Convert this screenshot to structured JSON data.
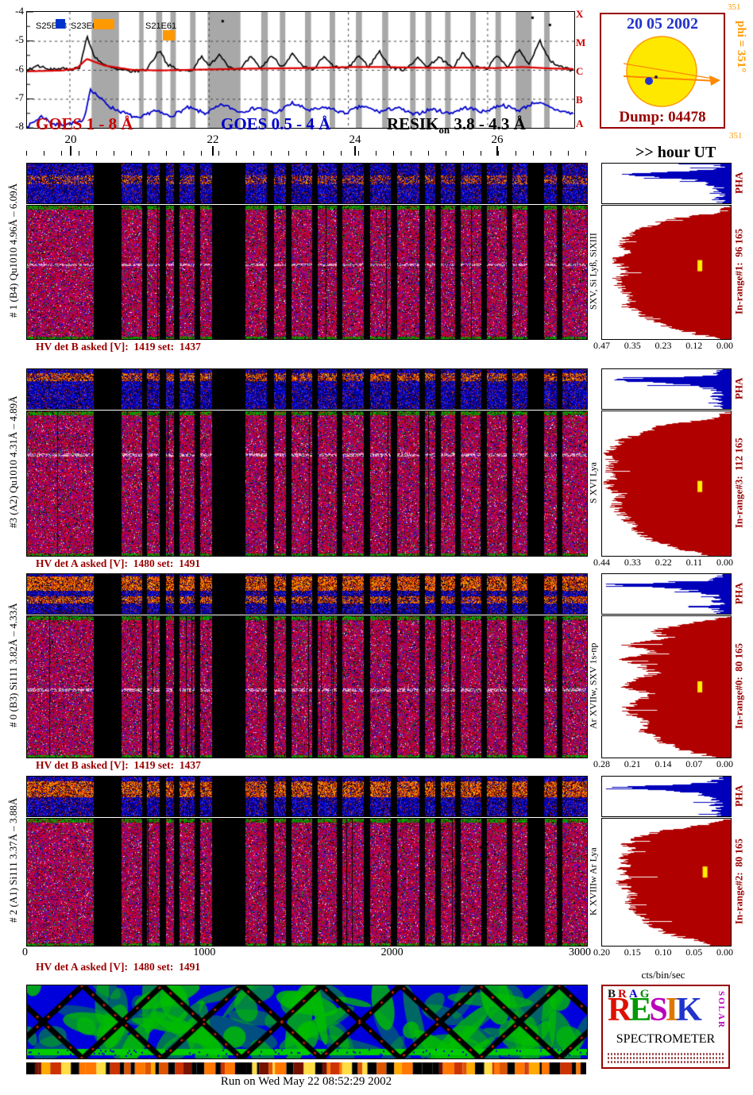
{
  "header": {
    "flares": [
      {
        "label": "S25E48",
        "marker_color": "#0033cc"
      },
      {
        "label": "S23E64",
        "marker_color": "#ff9900"
      },
      {
        "label": "S21E61",
        "marker_color": "#ff9900"
      }
    ],
    "yaxis": {
      "ticks": [
        "-4",
        "-5",
        "-6",
        "-7",
        "-8"
      ]
    },
    "goes_classes": [
      "X",
      "M",
      "C",
      "B",
      "A"
    ],
    "legend": {
      "goes_long": "GOES 1 - 8 Å",
      "goes_short": "GOES 0.5 - 4 Å",
      "resik_name": "RESIK",
      "resik_sub": "on",
      "resik_range": " 3.8 - 4.3 Å"
    }
  },
  "sun_panel": {
    "date": "20 05 2002",
    "dump": "Dump: 04478"
  },
  "side_labels": {
    "corner_value": "351",
    "phi": "phi = 351°",
    "lower_value": "351"
  },
  "time_axis": {
    "title": ">> hour UT",
    "ticks": [
      "20",
      "22",
      "24",
      "26"
    ]
  },
  "channels": [
    {
      "left_label": "# 1 (B4) Qu1010 4.96Å – 6.09Å",
      "hv_label": "HV det B asked [V]:  1419 set:  1437",
      "pha_label": "PHA",
      "line_label": "SXV, Si Lyß, SiXIII",
      "inrange_label": "In-range#1:  96 165",
      "hist_axis": [
        "0.47",
        "0.35",
        "0.23",
        "0.12",
        "0.00"
      ]
    },
    {
      "left_label": "#3 (A2) Qu1010 4.31Å – 4.89Å",
      "hv_label": "HV det A asked [V]:  1480 set:  1491",
      "pha_label": "PHA",
      "line_label": "S XVI Lya",
      "inrange_label": "In-range#3:  112 165",
      "hist_axis": [
        "0.44",
        "0.33",
        "0.22",
        "0.11",
        "0.00"
      ]
    },
    {
      "left_label": "# 0 (B3) Si111 3.82Å – 4.33Å",
      "hv_label": "HV det B asked [V]:  1419 set:  1437",
      "pha_label": "PHA",
      "line_label": "Ar XVIIw, SXV 1s-np",
      "inrange_label": "In-range#0:  80 165",
      "hist_axis": [
        "0.28",
        "0.21",
        "0.14",
        "0.07",
        "0.00"
      ]
    },
    {
      "left_label": "# 2 (A1) Si111 3.37Å – 3.88Å",
      "hv_label": "HV det A asked [V]:  1480 set:  1491",
      "pha_label": "PHA",
      "line_label": "K XVIIIw Ar Lya",
      "inrange_label": "In-range#2:  80 165",
      "hist_axis": [
        "0.20",
        "0.15",
        "0.10",
        "0.05",
        "0.00"
      ]
    }
  ],
  "bottom_axis": {
    "ticks": [
      "0",
      "1000",
      "2000",
      "3000"
    ],
    "units_label": "cts/bin/sec"
  },
  "logo": {
    "top_letters": [
      {
        "ch": "B",
        "color": "#111111"
      },
      {
        "ch": "R",
        "color": "#cc0000"
      },
      {
        "ch": "A",
        "color": "#0000cc"
      },
      {
        "ch": "G",
        "color": "#008800"
      }
    ],
    "big_letters": [
      {
        "ch": "R",
        "color": "#dd1100"
      },
      {
        "ch": "E",
        "color": "#009900"
      },
      {
        "ch": "S",
        "color": "#bb00bb"
      },
      {
        "ch": "I",
        "color": "#dd7700"
      },
      {
        "ch": "K",
        "color": "#2233cc"
      }
    ],
    "side_word": "SOLAR",
    "name": "SPECTROMETER"
  },
  "footer": {
    "run_label": "Run on Wed May 22 08:52:29 2002"
  },
  "chart_data": [
    {
      "name": "goes_xray_lightcurve",
      "type": "line",
      "x_unit": "hour UT",
      "x_range": [
        19.39,
        27.25
      ],
      "x_ticks": [
        20,
        22,
        24,
        26
      ],
      "ylim": [
        -8,
        -4
      ],
      "y_ticks": [
        -4,
        -5,
        -6,
        -7,
        -8
      ],
      "legend_position": "bottom",
      "grid": "dashed",
      "series": [
        {
          "name": "GOES 1 - 8 Å",
          "color": "#000000",
          "x": [
            19.4,
            19.55,
            19.7,
            19.85,
            20.0,
            20.15,
            20.25,
            20.35,
            20.5,
            20.7,
            20.9,
            21.1,
            21.3,
            21.4,
            21.55,
            21.75,
            21.9,
            22.0,
            22.15,
            22.3,
            22.45,
            22.6,
            22.75,
            22.9,
            23.05,
            23.2,
            23.35,
            23.5,
            23.65,
            23.8,
            24.0,
            24.15,
            24.3,
            24.45,
            24.6,
            24.8,
            25.0,
            25.15,
            25.3,
            25.5,
            25.65,
            25.8,
            26.0,
            26.15,
            26.3,
            26.45,
            26.6,
            26.75,
            26.9,
            27.05,
            27.2,
            27.3
          ],
          "y": [
            -6.0,
            -5.85,
            -6.0,
            -5.95,
            -6.0,
            -5.9,
            -4.85,
            -5.5,
            -5.85,
            -6.0,
            -6.05,
            -6.0,
            -5.3,
            -5.8,
            -6.0,
            -6.05,
            -5.5,
            -5.9,
            -5.45,
            -5.9,
            -6.0,
            -5.55,
            -5.95,
            -5.5,
            -5.9,
            -5.45,
            -5.9,
            -6.0,
            -5.55,
            -5.9,
            -5.95,
            -5.5,
            -5.9,
            -5.35,
            -5.9,
            -6.0,
            -5.6,
            -5.9,
            -5.55,
            -5.95,
            -5.4,
            -5.9,
            -5.95,
            -5.5,
            -5.9,
            -5.3,
            -5.85,
            -4.95,
            -5.7,
            -5.9,
            -6.0,
            -5.95
          ]
        },
        {
          "name": "GOES 1 - 8 Å smoothed",
          "color": "#dd0000",
          "x": [
            19.4,
            19.9,
            20.1,
            20.25,
            20.5,
            20.9,
            21.3,
            21.7,
            22.1,
            22.5,
            22.9,
            23.3,
            23.7,
            24.1,
            24.5,
            24.9,
            25.3,
            25.7,
            26.1,
            26.5,
            26.9,
            27.3
          ],
          "y": [
            -6.05,
            -6.02,
            -5.95,
            -5.62,
            -5.85,
            -6.0,
            -6.02,
            -6.0,
            -5.98,
            -5.96,
            -5.95,
            -5.94,
            -5.92,
            -5.9,
            -5.9,
            -5.92,
            -5.93,
            -5.92,
            -5.94,
            -5.9,
            -5.95,
            -5.97
          ]
        },
        {
          "name": "GOES 0.5 - 4 Å",
          "color": "#0000cc",
          "x": [
            19.4,
            19.6,
            19.8,
            20.0,
            20.2,
            20.3,
            20.45,
            20.6,
            20.8,
            21.0,
            21.2,
            21.45,
            21.7,
            21.95,
            22.2,
            22.45,
            22.7,
            22.95,
            23.2,
            23.45,
            23.7,
            23.95,
            24.2,
            24.45,
            24.7,
            24.95,
            25.2,
            25.45,
            25.7,
            25.95,
            26.2,
            26.45,
            26.7,
            26.95,
            27.2,
            27.3
          ],
          "y": [
            -7.95,
            -7.6,
            -7.9,
            -7.85,
            -7.8,
            -6.65,
            -7.0,
            -7.3,
            -7.5,
            -7.7,
            -7.4,
            -7.6,
            -7.3,
            -7.5,
            -7.2,
            -7.45,
            -7.3,
            -7.5,
            -7.15,
            -7.4,
            -7.3,
            -7.5,
            -7.25,
            -7.45,
            -7.3,
            -7.55,
            -7.35,
            -7.5,
            -7.3,
            -7.45,
            -7.2,
            -7.4,
            -7.1,
            -7.35,
            -7.5,
            -7.55
          ]
        }
      ],
      "isolated_points": [
        [
          22.2,
          -4.32
        ],
        [
          26.65,
          -4.2
        ],
        [
          26.9,
          -4.45
        ]
      ]
    },
    {
      "name": "resik_spectrograms",
      "type": "heatmap",
      "x_bins": [
        0,
        3000
      ],
      "x_ticks": [
        0,
        1000,
        2000,
        3000
      ],
      "channels": [
        "# 1 (B4)",
        "#3 (A2)",
        "# 0 (B3)",
        "# 2 (A1)"
      ],
      "gap_intervals_frac": [
        [
          0.118,
          0.168
        ],
        [
          0.205,
          0.213
        ],
        [
          0.236,
          0.247
        ],
        [
          0.262,
          0.272
        ],
        [
          0.298,
          0.308
        ],
        [
          0.33,
          0.39
        ],
        [
          0.428,
          0.44
        ],
        [
          0.462,
          0.472
        ],
        [
          0.508,
          0.519
        ],
        [
          0.553,
          0.563
        ],
        [
          0.601,
          0.612
        ],
        [
          0.649,
          0.66
        ],
        [
          0.7,
          0.71
        ],
        [
          0.728,
          0.739
        ],
        [
          0.764,
          0.774
        ],
        [
          0.81,
          0.82
        ],
        [
          0.856,
          0.866
        ],
        [
          0.893,
          0.922
        ],
        [
          0.945,
          0.955
        ]
      ],
      "strip_hot_bands": [
        [
          [
            0.3,
            0.5,
            0.5
          ]
        ],
        [
          [
            0.1,
            0.28,
            0.7
          ]
        ],
        [
          [
            0.05,
            0.4,
            0.9
          ],
          [
            0.55,
            0.72,
            0.7
          ]
        ],
        [
          [
            0.12,
            0.5,
            0.85
          ]
        ]
      ],
      "light_rows": [
        [
          0.44
        ],
        [
          0.3
        ],
        [
          0.52
        ],
        []
      ]
    },
    {
      "name": "pha_count_histograms",
      "type": "area",
      "x_label": "cts/bin/sec",
      "hist_max": [
        0.47,
        0.44,
        0.28,
        0.2
      ],
      "blue_envelope": [
        0.06,
        0.08,
        0.1,
        0.16,
        0.45,
        0.92,
        0.75,
        0.45,
        0.28,
        0.2,
        0.15,
        0.12,
        0.1,
        0.1,
        0.12,
        0.1,
        0.1,
        0.12,
        0.1,
        0.08,
        0.1
      ],
      "red_envelopes": [
        [
          0.0,
          0.08,
          0.5,
          0.62,
          0.78,
          0.82,
          0.88,
          0.8,
          0.92,
          0.85,
          0.8,
          0.9,
          0.86,
          0.8,
          0.76,
          0.82,
          0.72,
          0.62,
          0.5,
          0.3,
          0.08
        ],
        [
          0.0,
          0.15,
          0.55,
          0.72,
          0.86,
          0.92,
          0.96,
          0.9,
          0.96,
          0.92,
          0.95,
          0.9,
          0.86,
          0.9,
          0.86,
          0.8,
          0.76,
          0.7,
          0.58,
          0.4,
          0.12
        ],
        [
          0.0,
          0.35,
          0.62,
          0.5,
          0.82,
          0.6,
          0.86,
          0.7,
          0.58,
          0.76,
          0.82,
          0.6,
          0.72,
          0.82,
          0.76,
          0.66,
          0.7,
          0.6,
          0.5,
          0.34,
          0.1
        ],
        [
          0.0,
          0.25,
          0.58,
          0.72,
          0.82,
          0.76,
          0.86,
          0.8,
          0.86,
          0.8,
          0.86,
          0.8,
          0.76,
          0.82,
          0.76,
          0.7,
          0.66,
          0.6,
          0.5,
          0.3,
          0.1
        ]
      ],
      "markers": [
        {
          "x": 0.76,
          "y": 0.45
        },
        {
          "x": 0.76,
          "y": 0.52
        },
        {
          "x": 0.76,
          "y": 0.5
        },
        {
          "x": 0.8,
          "y": 0.42
        }
      ]
    }
  ]
}
